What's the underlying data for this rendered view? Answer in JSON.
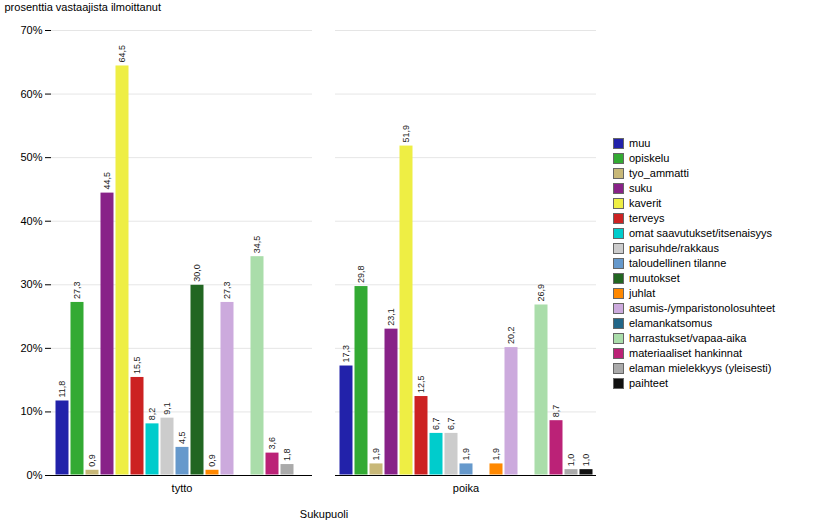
{
  "chart_data": {
    "type": "bar",
    "categories": [
      "tytto",
      "poika"
    ],
    "series": [
      {
        "name": "muu",
        "color": "#2222AA",
        "values": [
          11.8,
          17.3
        ],
        "value_labels": [
          "11,8",
          "17,3"
        ]
      },
      {
        "name": "opiskelu",
        "color": "#33AA33",
        "values": [
          27.3,
          29.8
        ],
        "value_labels": [
          "27,3",
          "29,8"
        ]
      },
      {
        "name": "tyo_ammatti",
        "color": "#C8B878",
        "values": [
          0.9,
          1.9
        ],
        "value_labels": [
          "0,9",
          "1,9"
        ]
      },
      {
        "name": "suku",
        "color": "#882288",
        "values": [
          44.5,
          23.1
        ],
        "value_labels": [
          "44,5",
          "23,1"
        ]
      },
      {
        "name": "kaverit",
        "color": "#EEEE44",
        "values": [
          64.5,
          51.9
        ],
        "value_labels": [
          "64,5",
          "51,9"
        ]
      },
      {
        "name": "terveys",
        "color": "#CC2222",
        "values": [
          15.5,
          12.5
        ],
        "value_labels": [
          "15,5",
          "12,5"
        ]
      },
      {
        "name": "omat saavutukset/itsenaisyys",
        "color": "#00CCCC",
        "values": [
          8.2,
          6.7
        ],
        "value_labels": [
          "8,2",
          "6,7"
        ]
      },
      {
        "name": "parisuhde/rakkaus",
        "color": "#CCCCCC",
        "values": [
          9.1,
          6.7
        ],
        "value_labels": [
          "9,1",
          "6,7"
        ]
      },
      {
        "name": "taloudellinen tilanne",
        "color": "#6699CC",
        "values": [
          4.5,
          1.9
        ],
        "value_labels": [
          "4,5",
          "1,9"
        ]
      },
      {
        "name": "muutokset",
        "color": "#226622",
        "values": [
          30.0,
          0.0
        ],
        "value_labels": [
          "30,0",
          null
        ]
      },
      {
        "name": "juhlat",
        "color": "#FF8800",
        "values": [
          0.9,
          1.9
        ],
        "value_labels": [
          "0,9",
          "1,9"
        ]
      },
      {
        "name": "asumis-/ymparistonolosuhteet",
        "color": "#CCAADD",
        "values": [
          27.3,
          20.2
        ],
        "value_labels": [
          "27,3",
          "20,2"
        ]
      },
      {
        "name": "elamankatsomus",
        "color": "#226688",
        "values": [
          0.0,
          0.0
        ],
        "value_labels": [
          null,
          null
        ]
      },
      {
        "name": "harrastukset/vapaa-aika",
        "color": "#AADDAA",
        "values": [
          34.5,
          26.9
        ],
        "value_labels": [
          "34,5",
          "26,9"
        ]
      },
      {
        "name": "materiaaliset hankinnat",
        "color": "#BB2277",
        "values": [
          3.6,
          8.7
        ],
        "value_labels": [
          "3,6",
          "8,7"
        ]
      },
      {
        "name": "elaman mielekkyys (yleisesti)",
        "color": "#AAAAAA",
        "values": [
          1.8,
          1.0
        ],
        "value_labels": [
          "1,8",
          "1,0"
        ]
      },
      {
        "name": "paihteet",
        "color": "#111111",
        "values": [
          0.0,
          1.0
        ],
        "value_labels": [
          null,
          "1,0"
        ]
      }
    ],
    "xlabel": "Sukupuoli",
    "ylabel": "prosenttia vastaajista ilmoittanut",
    "ylim": [
      0,
      70
    ],
    "yticks": [
      {
        "value": 0,
        "label": "0%"
      },
      {
        "value": 10,
        "label": "10%"
      },
      {
        "value": 20,
        "label": "20%"
      },
      {
        "value": 30,
        "label": "30%"
      },
      {
        "value": 40,
        "label": "40%"
      },
      {
        "value": 50,
        "label": "50%"
      },
      {
        "value": 60,
        "label": "60%"
      },
      {
        "value": 70,
        "label": "70%"
      }
    ],
    "grid": true,
    "legend": "right",
    "data_labels": true
  }
}
